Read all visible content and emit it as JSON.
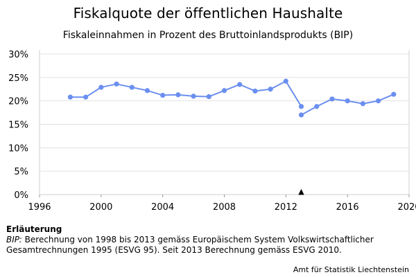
{
  "chart_data": {
    "type": "line",
    "title": "Fiskalquote der öffentlichen Haushalte",
    "subtitle": "Fiskaleinnahmen in Prozent des Bruttoinlandsprodukts (BIP)",
    "xlim": [
      1996,
      2020
    ],
    "ylim": [
      0,
      30
    ],
    "x_ticks": [
      "1996",
      "2000",
      "2004",
      "2008",
      "2012",
      "2016",
      "2020"
    ],
    "y_ticks": [
      "0%",
      "5%",
      "10%",
      "15%",
      "20%",
      "25%",
      "30%"
    ],
    "grid": "horizontal",
    "line_color": "#6b8ff0",
    "series": [
      {
        "x": [
          1998,
          1999,
          2000,
          2001,
          2002,
          2003,
          2004,
          2005,
          2006,
          2007,
          2008,
          2009,
          2010,
          2011,
          2012,
          2013
        ],
        "values": [
          20.8,
          20.8,
          22.9,
          23.6,
          22.9,
          22.2,
          21.2,
          21.3,
          21.0,
          20.9,
          22.2,
          23.5,
          22.1,
          22.5,
          24.2,
          18.8
        ]
      },
      {
        "x": [
          2013,
          2014,
          2015,
          2016,
          2017,
          2018,
          2019
        ],
        "values": [
          17.0,
          18.8,
          20.4,
          20.0,
          19.4,
          20.0,
          21.4
        ]
      }
    ],
    "marker": {
      "x": 2013,
      "y": 0,
      "symbol": "▲"
    }
  },
  "notes": {
    "heading": "Erläuterung",
    "abbr": "BIP:",
    "text": " Berechnung von 1998 bis 2013 gemäss Europäischem System Volkswirtschaftlicher Gesamtrechnungen 1995 (ESVG 95). Seit 2013 Berechnung gemäss ESVG 2010."
  },
  "source": "Amt für Statistik Liechtenstein"
}
